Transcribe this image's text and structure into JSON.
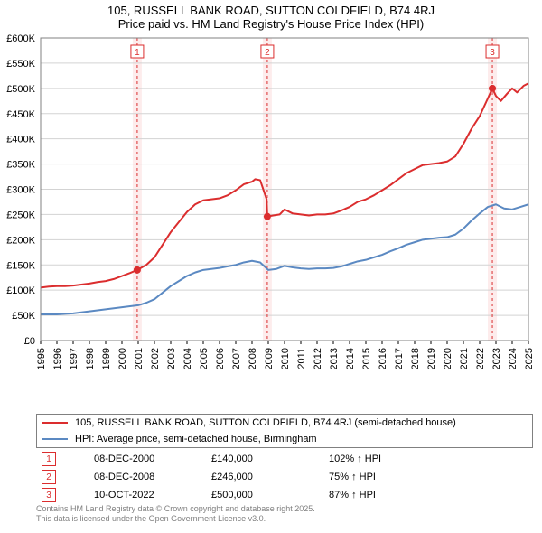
{
  "title_line1": "105, RUSSELL BANK ROAD, SUTTON COLDFIELD, B74 4RJ",
  "title_line2": "Price paid vs. HM Land Registry's House Price Index (HPI)",
  "title_fontsize": 13,
  "chart": {
    "type": "line",
    "background_color": "#ffffff",
    "plot_border_color": "#808080",
    "grid_color": "#d3d3d3",
    "x_axis": {
      "min": 1995,
      "max": 2025,
      "ticks": [
        1995,
        1996,
        1997,
        1998,
        1999,
        2000,
        2001,
        2002,
        2003,
        2004,
        2005,
        2006,
        2007,
        2008,
        2009,
        2010,
        2011,
        2012,
        2013,
        2014,
        2015,
        2016,
        2017,
        2018,
        2019,
        2020,
        2021,
        2022,
        2023,
        2024,
        2025
      ],
      "tick_label_rotation": -90,
      "tick_fontsize": 11
    },
    "y_axis": {
      "min": 0,
      "max": 600000,
      "ticks": [
        0,
        50000,
        100000,
        150000,
        200000,
        250000,
        300000,
        350000,
        400000,
        450000,
        500000,
        550000,
        600000
      ],
      "tick_labels": [
        "£0",
        "£50K",
        "£100K",
        "£150K",
        "£200K",
        "£250K",
        "£300K",
        "£350K",
        "£400K",
        "£450K",
        "£500K",
        "£550K",
        "£600K"
      ],
      "tick_fontsize": 11
    },
    "event_bands": [
      {
        "x": 2000.94,
        "label": "1",
        "color": "#db2d2e",
        "band_fill": "#fdecec"
      },
      {
        "x": 2008.94,
        "label": "2",
        "color": "#db2d2e",
        "band_fill": "#fdecec"
      },
      {
        "x": 2022.78,
        "label": "3",
        "color": "#db2d2e",
        "band_fill": "#fdecec"
      }
    ],
    "series": [
      {
        "name": "105, RUSSELL BANK ROAD, SUTTON COLDFIELD, B74 4RJ (semi-detached house)",
        "color": "#db2d2e",
        "line_width": 2,
        "marker_color": "#db2d2e",
        "marker_radius": 4,
        "markers": [
          {
            "x": 2000.94,
            "y": 140000
          },
          {
            "x": 2008.94,
            "y": 246000
          },
          {
            "x": 2022.78,
            "y": 500000
          }
        ],
        "points": [
          {
            "x": 1995.0,
            "y": 105000
          },
          {
            "x": 1995.5,
            "y": 107000
          },
          {
            "x": 1996.0,
            "y": 108000
          },
          {
            "x": 1996.5,
            "y": 108000
          },
          {
            "x": 1997.0,
            "y": 109000
          },
          {
            "x": 1997.5,
            "y": 111000
          },
          {
            "x": 1998.0,
            "y": 113000
          },
          {
            "x": 1998.5,
            "y": 116000
          },
          {
            "x": 1999.0,
            "y": 118000
          },
          {
            "x": 1999.5,
            "y": 122000
          },
          {
            "x": 2000.0,
            "y": 128000
          },
          {
            "x": 2000.5,
            "y": 134000
          },
          {
            "x": 2000.94,
            "y": 140000
          },
          {
            "x": 2001.5,
            "y": 150000
          },
          {
            "x": 2002.0,
            "y": 165000
          },
          {
            "x": 2002.5,
            "y": 190000
          },
          {
            "x": 2003.0,
            "y": 215000
          },
          {
            "x": 2003.5,
            "y": 235000
          },
          {
            "x": 2004.0,
            "y": 255000
          },
          {
            "x": 2004.5,
            "y": 270000
          },
          {
            "x": 2005.0,
            "y": 278000
          },
          {
            "x": 2005.5,
            "y": 280000
          },
          {
            "x": 2006.0,
            "y": 282000
          },
          {
            "x": 2006.5,
            "y": 288000
          },
          {
            "x": 2007.0,
            "y": 298000
          },
          {
            "x": 2007.5,
            "y": 310000
          },
          {
            "x": 2008.0,
            "y": 315000
          },
          {
            "x": 2008.2,
            "y": 320000
          },
          {
            "x": 2008.5,
            "y": 318000
          },
          {
            "x": 2008.9,
            "y": 280000
          },
          {
            "x": 2008.94,
            "y": 246000
          },
          {
            "x": 2009.3,
            "y": 248000
          },
          {
            "x": 2009.7,
            "y": 250000
          },
          {
            "x": 2010.0,
            "y": 260000
          },
          {
            "x": 2010.5,
            "y": 252000
          },
          {
            "x": 2011.0,
            "y": 250000
          },
          {
            "x": 2011.5,
            "y": 248000
          },
          {
            "x": 2012.0,
            "y": 250000
          },
          {
            "x": 2012.5,
            "y": 250000
          },
          {
            "x": 2013.0,
            "y": 252000
          },
          {
            "x": 2013.5,
            "y": 258000
          },
          {
            "x": 2014.0,
            "y": 265000
          },
          {
            "x": 2014.5,
            "y": 275000
          },
          {
            "x": 2015.0,
            "y": 280000
          },
          {
            "x": 2015.5,
            "y": 288000
          },
          {
            "x": 2016.0,
            "y": 298000
          },
          {
            "x": 2016.5,
            "y": 308000
          },
          {
            "x": 2017.0,
            "y": 320000
          },
          {
            "x": 2017.5,
            "y": 332000
          },
          {
            "x": 2018.0,
            "y": 340000
          },
          {
            "x": 2018.5,
            "y": 348000
          },
          {
            "x": 2019.0,
            "y": 350000
          },
          {
            "x": 2019.5,
            "y": 352000
          },
          {
            "x": 2020.0,
            "y": 355000
          },
          {
            "x": 2020.5,
            "y": 365000
          },
          {
            "x": 2021.0,
            "y": 390000
          },
          {
            "x": 2021.5,
            "y": 420000
          },
          {
            "x": 2022.0,
            "y": 445000
          },
          {
            "x": 2022.5,
            "y": 480000
          },
          {
            "x": 2022.78,
            "y": 500000
          },
          {
            "x": 2023.0,
            "y": 485000
          },
          {
            "x": 2023.3,
            "y": 475000
          },
          {
            "x": 2023.7,
            "y": 490000
          },
          {
            "x": 2024.0,
            "y": 500000
          },
          {
            "x": 2024.3,
            "y": 492000
          },
          {
            "x": 2024.7,
            "y": 505000
          },
          {
            "x": 2025.0,
            "y": 510000
          }
        ]
      },
      {
        "name": "HPI: Average price, semi-detached house, Birmingham",
        "color": "#5b89c2",
        "line_width": 2,
        "points": [
          {
            "x": 1995.0,
            "y": 52000
          },
          {
            "x": 1995.5,
            "y": 52000
          },
          {
            "x": 1996.0,
            "y": 52000
          },
          {
            "x": 1996.5,
            "y": 53000
          },
          {
            "x": 1997.0,
            "y": 54000
          },
          {
            "x": 1997.5,
            "y": 56000
          },
          {
            "x": 1998.0,
            "y": 58000
          },
          {
            "x": 1998.5,
            "y": 60000
          },
          {
            "x": 1999.0,
            "y": 62000
          },
          {
            "x": 1999.5,
            "y": 64000
          },
          {
            "x": 2000.0,
            "y": 66000
          },
          {
            "x": 2000.5,
            "y": 68000
          },
          {
            "x": 2001.0,
            "y": 70000
          },
          {
            "x": 2001.5,
            "y": 75000
          },
          {
            "x": 2002.0,
            "y": 82000
          },
          {
            "x": 2002.5,
            "y": 95000
          },
          {
            "x": 2003.0,
            "y": 108000
          },
          {
            "x": 2003.5,
            "y": 118000
          },
          {
            "x": 2004.0,
            "y": 128000
          },
          {
            "x": 2004.5,
            "y": 135000
          },
          {
            "x": 2005.0,
            "y": 140000
          },
          {
            "x": 2005.5,
            "y": 142000
          },
          {
            "x": 2006.0,
            "y": 144000
          },
          {
            "x": 2006.5,
            "y": 147000
          },
          {
            "x": 2007.0,
            "y": 150000
          },
          {
            "x": 2007.5,
            "y": 155000
          },
          {
            "x": 2008.0,
            "y": 158000
          },
          {
            "x": 2008.5,
            "y": 155000
          },
          {
            "x": 2009.0,
            "y": 140000
          },
          {
            "x": 2009.5,
            "y": 142000
          },
          {
            "x": 2010.0,
            "y": 148000
          },
          {
            "x": 2010.5,
            "y": 145000
          },
          {
            "x": 2011.0,
            "y": 143000
          },
          {
            "x": 2011.5,
            "y": 142000
          },
          {
            "x": 2012.0,
            "y": 143000
          },
          {
            "x": 2012.5,
            "y": 143000
          },
          {
            "x": 2013.0,
            "y": 144000
          },
          {
            "x": 2013.5,
            "y": 147000
          },
          {
            "x": 2014.0,
            "y": 152000
          },
          {
            "x": 2014.5,
            "y": 157000
          },
          {
            "x": 2015.0,
            "y": 160000
          },
          {
            "x": 2015.5,
            "y": 165000
          },
          {
            "x": 2016.0,
            "y": 170000
          },
          {
            "x": 2016.5,
            "y": 177000
          },
          {
            "x": 2017.0,
            "y": 183000
          },
          {
            "x": 2017.5,
            "y": 190000
          },
          {
            "x": 2018.0,
            "y": 195000
          },
          {
            "x": 2018.5,
            "y": 200000
          },
          {
            "x": 2019.0,
            "y": 202000
          },
          {
            "x": 2019.5,
            "y": 204000
          },
          {
            "x": 2020.0,
            "y": 205000
          },
          {
            "x": 2020.5,
            "y": 210000
          },
          {
            "x": 2021.0,
            "y": 222000
          },
          {
            "x": 2021.5,
            "y": 238000
          },
          {
            "x": 2022.0,
            "y": 252000
          },
          {
            "x": 2022.5,
            "y": 265000
          },
          {
            "x": 2023.0,
            "y": 270000
          },
          {
            "x": 2023.5,
            "y": 262000
          },
          {
            "x": 2024.0,
            "y": 260000
          },
          {
            "x": 2024.5,
            "y": 265000
          },
          {
            "x": 2025.0,
            "y": 270000
          }
        ]
      }
    ]
  },
  "legend": {
    "items": [
      {
        "color": "#db2d2e",
        "label": "105, RUSSELL BANK ROAD, SUTTON COLDFIELD, B74 4RJ (semi-detached house)"
      },
      {
        "color": "#5b89c2",
        "label": "HPI: Average price, semi-detached house, Birmingham"
      }
    ]
  },
  "transactions": [
    {
      "marker": "1",
      "marker_color": "#db2d2e",
      "date": "08-DEC-2000",
      "price": "£140,000",
      "comparison": "102% ↑ HPI"
    },
    {
      "marker": "2",
      "marker_color": "#db2d2e",
      "date": "08-DEC-2008",
      "price": "£246,000",
      "comparison": "75% ↑ HPI"
    },
    {
      "marker": "3",
      "marker_color": "#db2d2e",
      "date": "10-OCT-2022",
      "price": "£500,000",
      "comparison": "87% ↑ HPI"
    }
  ],
  "footer_line1": "Contains HM Land Registry data © Crown copyright and database right 2025.",
  "footer_line2": "This data is licensed under the Open Government Licence v3.0.",
  "footer_color": "#808080"
}
